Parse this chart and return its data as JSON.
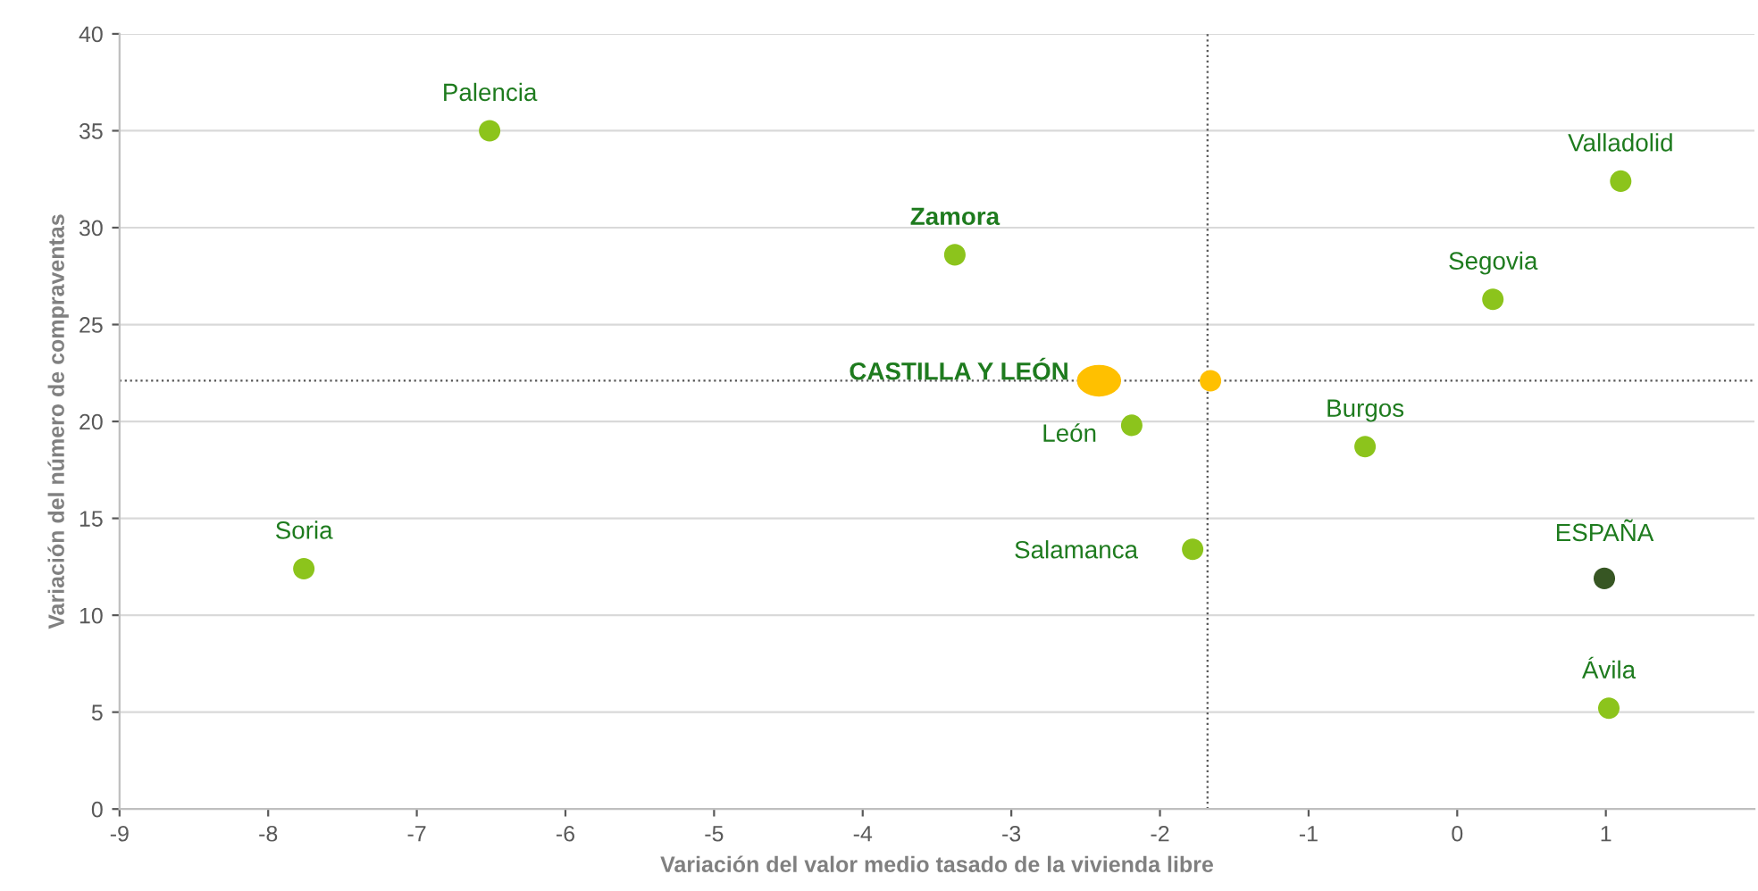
{
  "chart_data": {
    "type": "scatter",
    "xlabel": "Variación del valor medio tasado de la vivienda libre",
    "ylabel": "Variación del número de compraventas",
    "xlim": [
      -9,
      2
    ],
    "xticks": [
      -9,
      -8,
      -7,
      -6,
      -5,
      -4,
      -3,
      -2,
      -1,
      0,
      1
    ],
    "ylim": [
      0,
      40
    ],
    "yticks": [
      0,
      5,
      10,
      15,
      20,
      25,
      30,
      35,
      40
    ],
    "grid": "y",
    "marker": "circle",
    "legend": "center",
    "series": [
      {
        "name": "Palencia",
        "color": "#8cc41c",
        "x": [
          -6.51
        ],
        "values": [
          35.0
        ]
      },
      {
        "name": "Zamora",
        "color": "#8cc41c",
        "x": [
          -3.38
        ],
        "values": [
          28.6
        ]
      },
      {
        "name": "Valladolid",
        "color": "#8cc41c",
        "x": [
          1.1
        ],
        "values": [
          32.4
        ]
      },
      {
        "name": "Segovia",
        "color": "#8cc41c",
        "x": [
          0.24
        ],
        "values": [
          26.3
        ]
      },
      {
        "name": "CASTILLA Y LEÓN",
        "color": "#ffc000",
        "x": [
          -1.66
        ],
        "values": [
          22.1
        ]
      },
      {
        "name": "León",
        "color": "#8cc41c",
        "x": [
          -2.19
        ],
        "values": [
          19.8
        ]
      },
      {
        "name": "Burgos",
        "color": "#8cc41c",
        "x": [
          -0.62
        ],
        "values": [
          18.7
        ]
      },
      {
        "name": "Soria",
        "color": "#8cc41c",
        "x": [
          -7.76
        ],
        "values": [
          12.4
        ]
      },
      {
        "name": "Salamanca",
        "color": "#8cc41c",
        "x": [
          -1.78
        ],
        "values": [
          13.4
        ]
      },
      {
        "name": "ESPAÑA",
        "color": "#375623",
        "x": [
          0.99
        ],
        "values": [
          11.9
        ]
      },
      {
        "name": "Ávila",
        "color": "#8cc41c",
        "x": [
          1.02
        ],
        "values": [
          5.2
        ]
      }
    ],
    "ref_lines": [
      {
        "axis": "x",
        "value": -1.68,
        "color": "#555555",
        "line_style": "dotted"
      },
      {
        "axis": "y",
        "value": 22.1,
        "color": "#555555",
        "line_style": "dotted"
      }
    ]
  }
}
